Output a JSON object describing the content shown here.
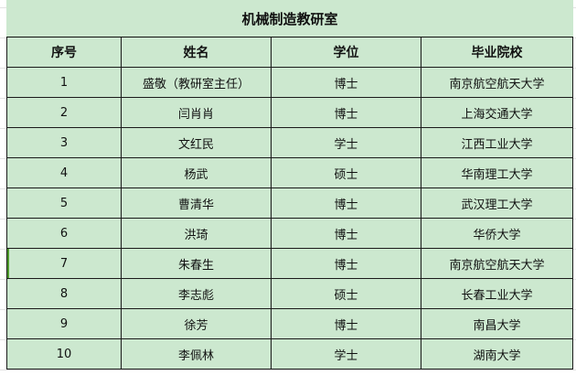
{
  "title": "机械制造教研室",
  "headers": [
    "序号",
    "姓名",
    "学位",
    "毕业院校"
  ],
  "rows": [
    [
      "1",
      "盛敬（教研室主任）",
      "博士",
      "南京航空航天大学"
    ],
    [
      "2",
      "闫肖肖",
      "博士",
      "上海交通大学"
    ],
    [
      "3",
      "文红民",
      "学士",
      "江西工业大学"
    ],
    [
      "4",
      "杨武",
      "硕士",
      "华南理工大学"
    ],
    [
      "5",
      "曹清华",
      "博士",
      "武汉理工大学"
    ],
    [
      "6",
      "洪琦",
      "博士",
      "华侨大学"
    ],
    [
      "7",
      "朱春生",
      "博士",
      "南京航空航天大学"
    ],
    [
      "8",
      "李志彪",
      "硕士",
      "长春工业大学"
    ],
    [
      "9",
      "徐芳",
      "博士",
      "南昌大学"
    ],
    [
      "10",
      "李佩林",
      "学士",
      "湖南大学"
    ]
  ],
  "colors": {
    "cell_background": "#cce8cf",
    "selection": "#4e9a2a"
  }
}
